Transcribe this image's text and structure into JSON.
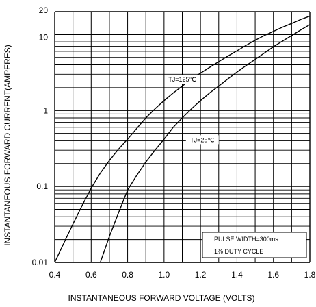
{
  "chart_data": {
    "type": "line",
    "xlabel": "INSTANTANEOUS FORWARD VOLTAGE (VOLTS)",
    "ylabel": "INSTANTANEOUS FORWARD CURRENT(AMPERES)",
    "xlim": [
      0.4,
      1.8
    ],
    "ylim": [
      0.01,
      20
    ],
    "y_scale": "log",
    "grid": true,
    "x_ticks": [
      "0.4",
      "0.6",
      "0.8",
      "1.0",
      "1.2",
      "1.4",
      "1.6",
      "1.8"
    ],
    "y_ticks": [
      {
        "label": "20",
        "value": 20
      },
      {
        "label": "10",
        "value": 10
      },
      {
        "label": "1",
        "value": 1
      },
      {
        "label": "0.1",
        "value": 0.1
      },
      {
        "label": "0.01",
        "value": 0.01
      }
    ],
    "series": [
      {
        "name": "TJ=125℃",
        "x": [
          0.4,
          0.45,
          0.5,
          0.55,
          0.6,
          0.65,
          0.7,
          0.75,
          0.8,
          0.85,
          0.9,
          0.95,
          1.0,
          1.05,
          1.1,
          1.15,
          1.2,
          1.25,
          1.3,
          1.35,
          1.4,
          1.45,
          1.5,
          1.55,
          1.6,
          1.65,
          1.7,
          1.75,
          1.8
        ],
        "y": [
          0.01,
          0.018,
          0.032,
          0.056,
          0.095,
          0.15,
          0.22,
          0.31,
          0.42,
          0.58,
          0.8,
          1.05,
          1.35,
          1.7,
          2.1,
          2.6,
          3.1,
          3.7,
          4.4,
          5.2,
          6.1,
          7.2,
          8.4,
          9.7,
          11.0,
          12.5,
          14.0,
          15.8,
          17.5
        ]
      },
      {
        "name": "TJ=25℃",
        "x": [
          0.65,
          0.7,
          0.75,
          0.8,
          0.85,
          0.9,
          0.95,
          1.0,
          1.05,
          1.1,
          1.15,
          1.2,
          1.25,
          1.3,
          1.35,
          1.4,
          1.45,
          1.5,
          1.55,
          1.6,
          1.65,
          1.7,
          1.75,
          1.8
        ],
        "y": [
          0.01,
          0.022,
          0.045,
          0.09,
          0.14,
          0.21,
          0.3,
          0.42,
          0.6,
          0.8,
          1.05,
          1.35,
          1.7,
          2.1,
          2.6,
          3.2,
          3.9,
          4.7,
          5.7,
          6.9,
          8.2,
          9.7,
          11.5,
          13.5
        ]
      }
    ],
    "annotations": [
      {
        "text": "TJ=125℃",
        "x": 1.1,
        "y": 2.5
      },
      {
        "text": "TJ=25℃",
        "x": 1.21,
        "y": 0.4
      }
    ],
    "legend_box": [
      "PULSE WIDTH=300ms",
      "1% DUTY CYCLE"
    ],
    "colors": {
      "line": "#000000",
      "grid": "#000000",
      "background": "#ffffff"
    }
  }
}
